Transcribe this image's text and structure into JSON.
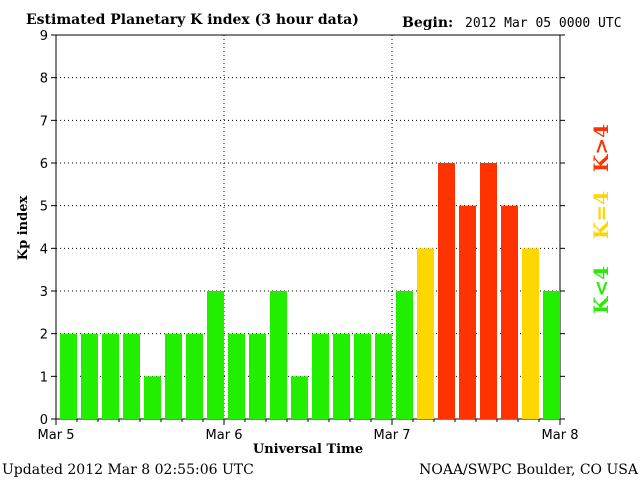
{
  "header": {
    "title": "Estimated Planetary K index (3 hour data)",
    "begin_label": "Begin:",
    "begin_value": "2012 Mar 05 0000 UTC"
  },
  "footer": {
    "updated": "Updated 2012 Mar  8 02:55:06 UTC",
    "source": "NOAA/SWPC Boulder, CO USA"
  },
  "legend": {
    "high": {
      "text": "K>4",
      "color": "#ff3300"
    },
    "equal": {
      "text": "K=4",
      "color": "#ffd700"
    },
    "low": {
      "text": "K<4",
      "color": "#22ee00"
    }
  },
  "chart_data": {
    "type": "bar",
    "title": "Estimated Planetary K index (3 hour data)",
    "xlabel": "Universal Time",
    "ylabel": "Kp index",
    "ylim": [
      0,
      9
    ],
    "yticks": [
      "0",
      "1",
      "2",
      "3",
      "4",
      "5",
      "6",
      "7",
      "8",
      "9"
    ],
    "xticks": [
      "Mar 5",
      "Mar 6",
      "Mar 7",
      "Mar 8"
    ],
    "bar_interval_hours": 3,
    "values": [
      2,
      2,
      2,
      2,
      1,
      2,
      2,
      3,
      2,
      2,
      3,
      1,
      2,
      2,
      2,
      2,
      3,
      4,
      6,
      5,
      6,
      5,
      4,
      3
    ],
    "grid": true,
    "colors": {
      "low": "#22ee00",
      "equal": "#ffd700",
      "high": "#ff3300"
    }
  }
}
